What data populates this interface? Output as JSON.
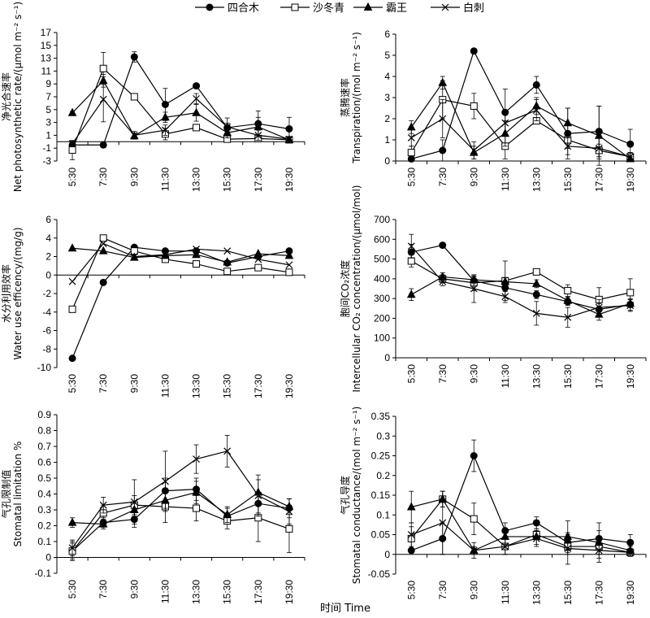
{
  "legend": [
    {
      "name": "四合木",
      "marker": "circle"
    },
    {
      "name": "沙冬青",
      "marker": "square"
    },
    {
      "name": "霸王",
      "marker": "triangle"
    },
    {
      "name": "白刺",
      "marker": "cross"
    }
  ],
  "x_title": "时间 Time",
  "chart_data": [
    {
      "type": "line",
      "panel": "top-left",
      "ylabel_cn": "净光合速率",
      "ylabel_en": "Net photosynthetic rate/(μmol m⁻² s⁻¹)",
      "categories": [
        "5:30",
        "7:30",
        "9:30",
        "11:30",
        "13:30",
        "15:30",
        "17:30",
        "19:30"
      ],
      "ylim": [
        -3,
        17
      ],
      "yticks": [
        -3,
        -1,
        1,
        3,
        5,
        7,
        9,
        11,
        13,
        15,
        17
      ],
      "series": [
        {
          "name": "四合木",
          "values": [
            -0.5,
            -0.5,
            13.2,
            5.8,
            8.7,
            2.2,
            2.8,
            2.0
          ],
          "errors": [
            0.3,
            0.4,
            0.8,
            2.5,
            0.3,
            1.5,
            2.0,
            1.8
          ]
        },
        {
          "name": "沙冬青",
          "values": [
            -1.3,
            11.4,
            7.0,
            1.2,
            2.2,
            0.4,
            0.5,
            0.3
          ],
          "errors": [
            1.5,
            2.5,
            0.2,
            0.9,
            0.3,
            0.5,
            0.4,
            0.3
          ]
        },
        {
          "name": "霸王",
          "values": [
            4.5,
            9.5,
            0.9,
            3.8,
            4.5,
            1.4,
            2.3,
            0.3
          ],
          "errors": [
            0.2,
            1.0,
            0.4,
            0.8,
            1.3,
            0.8,
            1.5,
            0.3
          ]
        },
        {
          "name": "白刺",
          "values": [
            -0.3,
            6.6,
            1.0,
            1.8,
            6.7,
            2.3,
            1.0,
            0.4
          ],
          "errors": [
            0.4,
            3.5,
            0.6,
            0.8,
            0.8,
            0.6,
            0.8,
            0.3
          ]
        }
      ]
    },
    {
      "type": "line",
      "panel": "top-right",
      "ylabel_cn": "蒸腾速率",
      "ylabel_en": "Transpiration/(mol m⁻² s⁻¹)",
      "categories": [
        "5:30",
        "7:30",
        "9:30",
        "11:30",
        "13:30",
        "15:30",
        "17:30",
        "19:30"
      ],
      "ylim": [
        0,
        6
      ],
      "yticks": [
        0,
        1,
        2,
        3,
        4,
        5,
        6
      ],
      "series": [
        {
          "name": "四合木",
          "values": [
            0.1,
            0.5,
            5.2,
            2.3,
            3.6,
            1.3,
            1.4,
            0.8
          ],
          "errors": [
            0.1,
            0.5,
            0.1,
            1.1,
            0.4,
            1.2,
            1.2,
            0.7
          ]
        },
        {
          "name": "沙冬青",
          "values": [
            0.4,
            2.9,
            2.6,
            0.7,
            1.9,
            1.0,
            0.5,
            0.2
          ],
          "errors": [
            0.3,
            0.9,
            0.6,
            0.6,
            0.1,
            0.4,
            0.3,
            0.2
          ]
        },
        {
          "name": "霸王",
          "values": [
            1.6,
            3.7,
            0.4,
            1.3,
            2.6,
            1.8,
            1.2,
            0.1
          ],
          "errors": [
            0.3,
            0.3,
            0.3,
            0.6,
            0.4,
            0.7,
            1.4,
            0.1
          ]
        },
        {
          "name": "白刺",
          "values": [
            1.1,
            2.0,
            0.5,
            1.8,
            2.4,
            0.7,
            0.6,
            0.2
          ],
          "errors": [
            0.4,
            0.9,
            0.4,
            0.6,
            0.5,
            0.4,
            0.5,
            0.2
          ]
        }
      ]
    },
    {
      "type": "line",
      "panel": "middle-left",
      "ylabel_cn": "水分利用效率",
      "ylabel_en": "Water use efficency/(mg/g)",
      "categories": [
        "5:30",
        "7:30",
        "9:30",
        "11:30",
        "13:30",
        "15:30",
        "17:30",
        "19:30"
      ],
      "ylim": [
        -10,
        6
      ],
      "yticks": [
        -10,
        -8,
        -6,
        -4,
        -2,
        0,
        2,
        4,
        6
      ],
      "series": [
        {
          "name": "四合木",
          "values": [
            -9.0,
            -0.8,
            3.0,
            2.6,
            2.6,
            1.3,
            2.0,
            2.6
          ],
          "errors": [
            0,
            0,
            0,
            0,
            0,
            0,
            0,
            0
          ]
        },
        {
          "name": "沙冬青",
          "values": [
            -3.7,
            4.0,
            2.6,
            1.7,
            1.2,
            0.4,
            0.8,
            0.3
          ],
          "errors": [
            0,
            0,
            0,
            0,
            0,
            0,
            0,
            0
          ]
        },
        {
          "name": "霸王",
          "values": [
            2.9,
            2.6,
            1.9,
            2.1,
            2.2,
            1.4,
            2.3,
            2.1
          ],
          "errors": [
            0,
            0,
            0,
            0,
            0,
            0,
            0,
            0
          ]
        },
        {
          "name": "白刺",
          "values": [
            -0.7,
            3.4,
            2.0,
            2.2,
            2.8,
            2.6,
            1.7,
            1.1
          ],
          "errors": [
            0,
            0,
            0,
            0,
            0,
            0,
            0,
            0
          ]
        }
      ]
    },
    {
      "type": "line",
      "panel": "middle-right",
      "ylabel_cn": "胞间CO₂浓度",
      "ylabel_en": "Intercellular CO₂ concentration/(μmol/mol)",
      "categories": [
        "5:30",
        "7:30",
        "9:30",
        "11:30",
        "13:30",
        "15:30",
        "17:30",
        "19:30"
      ],
      "ylim": [
        0,
        700
      ],
      "yticks": [
        0,
        100,
        200,
        300,
        400,
        500,
        600,
        700
      ],
      "series": [
        {
          "name": "四合木",
          "values": [
            535,
            570,
            390,
            355,
            320,
            285,
            245,
            270
          ],
          "errors": [
            40,
            10,
            20,
            20,
            20,
            20,
            30,
            30
          ]
        },
        {
          "name": "沙冬青",
          "values": [
            490,
            400,
            380,
            390,
            435,
            340,
            295,
            330
          ],
          "errors": [
            30,
            20,
            40,
            100,
            10,
            30,
            60,
            70
          ]
        },
        {
          "name": "霸王",
          "values": [
            320,
            410,
            395,
            385,
            375,
            290,
            220,
            275
          ],
          "errors": [
            30,
            20,
            20,
            20,
            20,
            20,
            30,
            20
          ]
        },
        {
          "name": "白刺",
          "values": [
            565,
            385,
            350,
            310,
            225,
            205,
            255,
            265
          ],
          "errors": [
            60,
            20,
            70,
            30,
            60,
            50,
            40,
            30
          ]
        }
      ]
    },
    {
      "type": "line",
      "panel": "bottom-left",
      "ylabel_cn": "气孔限制值",
      "ylabel_en": "Stomatal limitation %",
      "categories": [
        "5:30",
        "7:30",
        "9:30",
        "11:30",
        "13:30",
        "15:30",
        "17:30",
        "19:30"
      ],
      "ylim": [
        -0.1,
        0.9
      ],
      "yticks": [
        -0.1,
        0,
        0.1,
        0.2,
        0.3,
        0.4,
        0.5,
        0.6,
        0.7,
        0.8,
        0.9
      ],
      "series": [
        {
          "name": "四合木",
          "values": [
            0.04,
            0.22,
            0.24,
            0.42,
            0.43,
            0.26,
            0.34,
            0.31
          ],
          "errors": [
            0.05,
            0.03,
            0.05,
            0.08,
            0.07,
            0.05,
            0.06,
            0.06
          ]
        },
        {
          "name": "沙冬青",
          "values": [
            0.04,
            0.28,
            0.33,
            0.32,
            0.31,
            0.23,
            0.25,
            0.18
          ],
          "errors": [
            0.06,
            0.05,
            0.06,
            0.1,
            0.08,
            0.05,
            0.15,
            0.15
          ]
        },
        {
          "name": "霸王",
          "values": [
            0.22,
            0.21,
            0.3,
            0.36,
            0.41,
            0.27,
            0.41,
            0.32
          ],
          "errors": [
            0.03,
            0.03,
            0.04,
            0.05,
            0.07,
            0.05,
            0.08,
            0.05
          ]
        },
        {
          "name": "白刺",
          "values": [
            0.06,
            0.33,
            0.35,
            0.48,
            0.62,
            0.67,
            0.39,
            0.29
          ],
          "errors": [
            0.05,
            0.05,
            0.14,
            0.19,
            0.09,
            0.1,
            0.13,
            0.08
          ]
        }
      ]
    },
    {
      "type": "line",
      "panel": "bottom-right",
      "ylabel_cn": "气孔导度",
      "ylabel_en": "Stomatal conductance/(mol m⁻² s⁻¹)",
      "categories": [
        "5:30",
        "7:30",
        "9:30",
        "11:30",
        "13:30",
        "15:30",
        "17:30",
        "19:30"
      ],
      "ylim": [
        -0.05,
        0.35
      ],
      "yticks": [
        -0.05,
        0,
        0.05,
        0.1,
        0.15,
        0.2,
        0.25,
        0.3,
        0.35
      ],
      "series": [
        {
          "name": "四合木",
          "values": [
            0.01,
            0.04,
            0.25,
            0.06,
            0.08,
            0.03,
            0.04,
            0.03
          ],
          "errors": [
            0.005,
            0.04,
            0.04,
            0.02,
            0.015,
            0.02,
            0.02,
            0.02
          ]
        },
        {
          "name": "沙冬青",
          "values": [
            0.04,
            0.14,
            0.09,
            0.02,
            0.05,
            0.02,
            0.02,
            0.005
          ],
          "errors": [
            0.03,
            0.02,
            0.04,
            0.02,
            0.01,
            0.02,
            0.02,
            0.01
          ]
        },
        {
          "name": "霸王",
          "values": [
            0.12,
            0.14,
            0.01,
            0.045,
            0.045,
            0.045,
            0.03,
            0.01
          ],
          "errors": [
            0.04,
            0.02,
            0.01,
            0.02,
            0.02,
            0.04,
            0.05,
            0.01
          ]
        },
        {
          "name": "白刺",
          "values": [
            0.05,
            0.08,
            0.01,
            0.02,
            0.04,
            0.015,
            0.01,
            0.005
          ],
          "errors": [
            0.03,
            0.08,
            0.02,
            0.02,
            0.02,
            0.04,
            0.02,
            0.01
          ]
        }
      ]
    }
  ]
}
